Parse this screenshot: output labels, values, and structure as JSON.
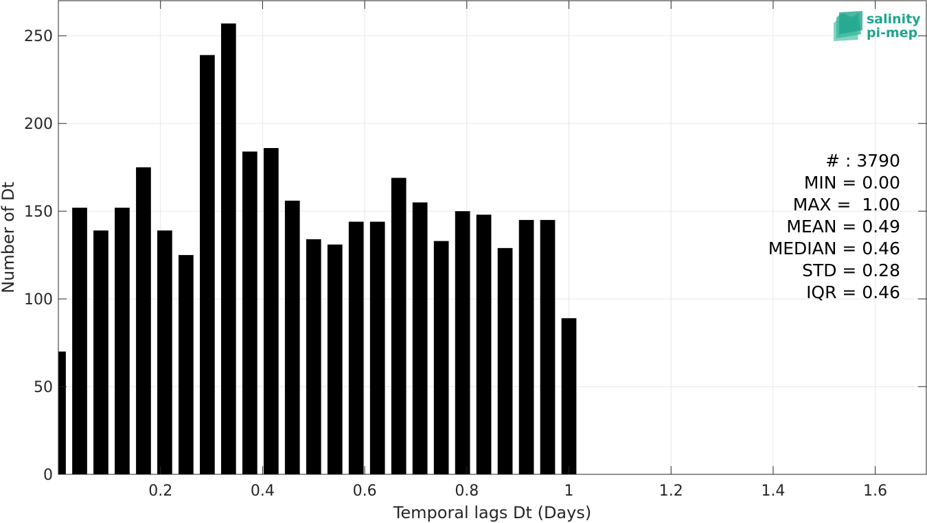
{
  "chart_data": {
    "type": "bar",
    "title": "",
    "xlabel": "Temporal lags Dt (Days)",
    "ylabel": "Number of Dt",
    "xlim": [
      0,
      1.7
    ],
    "ylim": [
      0,
      270
    ],
    "x_ticks": [
      0.2,
      0.4,
      0.6,
      0.8,
      1,
      1.2,
      1.4,
      1.6
    ],
    "x_tick_labels": [
      "0.2",
      "0.4",
      "0.6",
      "0.8",
      "1",
      "1.2",
      "1.4",
      "1.6"
    ],
    "y_ticks": [
      0,
      50,
      100,
      150,
      200,
      250
    ],
    "y_tick_labels": [
      "0",
      "50",
      "100",
      "150",
      "200",
      "250"
    ],
    "grid": true,
    "bar_color": "#000000",
    "bar_width": 0.0292,
    "x": [
      0.0,
      0.0417,
      0.0833,
      0.125,
      0.1667,
      0.2083,
      0.25,
      0.2917,
      0.3333,
      0.375,
      0.4167,
      0.4583,
      0.5,
      0.5417,
      0.5833,
      0.625,
      0.6667,
      0.7083,
      0.75,
      0.7917,
      0.8333,
      0.875,
      0.9167,
      0.9583,
      1.0
    ],
    "values": [
      70,
      152,
      139,
      152,
      175,
      139,
      125,
      239,
      257,
      184,
      186,
      156,
      134,
      131,
      144,
      144,
      169,
      155,
      133,
      150,
      148,
      129,
      145,
      145,
      89
    ]
  },
  "stats": {
    "lines": [
      "# : 3790",
      "MIN = 0.00",
      "MAX =  1.00",
      "MEAN = 0.49",
      "MEDIAN = 0.46",
      "STD = 0.28",
      "IQR = 0.46"
    ]
  },
  "logo": {
    "line1": "salinity",
    "line2": "pi-mep",
    "color": "#1fa58d"
  }
}
